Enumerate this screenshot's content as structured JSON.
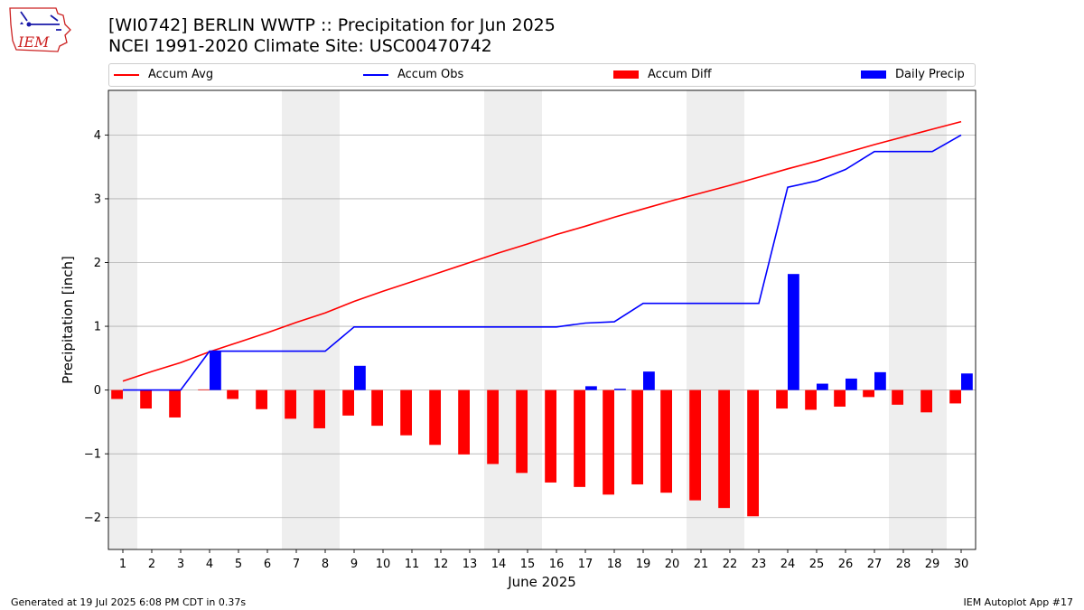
{
  "header": {
    "title_line1": "[WI0742] BERLIN WWTP :: Precipitation for Jun 2025",
    "title_line2": "NCEI 1991-2020 Climate Site: USC00470742"
  },
  "logo": {
    "text": "IEM",
    "icon": "iem-logo-icon"
  },
  "footer": {
    "left": "Generated at 19 Jul 2025 6:08 PM CDT in 0.37s",
    "right": "IEM Autoplot App #17"
  },
  "legend": [
    {
      "label": "Accum Avg",
      "kind": "line",
      "color": "#ff0000"
    },
    {
      "label": "Accum Obs",
      "kind": "line",
      "color": "#0000ff"
    },
    {
      "label": "Accum Diff",
      "kind": "bar",
      "color": "#ff0000"
    },
    {
      "label": "Daily Precip",
      "kind": "bar",
      "color": "#0000ff"
    }
  ],
  "chart_data": {
    "type": "bar",
    "xlabel": "June 2025",
    "ylabel": "Precipitation [inch]",
    "ylim": [
      -2.5,
      4.7
    ],
    "yticks": [
      -2,
      -1,
      0,
      1,
      2,
      3,
      4
    ],
    "ytick_labels": [
      "−2",
      "−1",
      "0",
      "1",
      "2",
      "3",
      "4"
    ],
    "grid": "horizontal",
    "legend_position": "top",
    "weekend_shading_color": "#eeeeee",
    "weekend_shading_days": [
      [
        1,
        1
      ],
      [
        7,
        8
      ],
      [
        14,
        15
      ],
      [
        21,
        22
      ],
      [
        28,
        29
      ]
    ],
    "categories": [
      "1",
      "2",
      "3",
      "4",
      "5",
      "6",
      "7",
      "8",
      "9",
      "10",
      "11",
      "12",
      "13",
      "14",
      "15",
      "16",
      "17",
      "18",
      "19",
      "20",
      "21",
      "22",
      "23",
      "24",
      "25",
      "26",
      "27",
      "28",
      "29",
      "30"
    ],
    "series": [
      {
        "name": "Accum Avg",
        "kind": "line",
        "color": "#ff0000",
        "values": [
          0.14,
          0.29,
          0.43,
          0.6,
          0.75,
          0.9,
          1.06,
          1.21,
          1.39,
          1.55,
          1.7,
          1.85,
          2.0,
          2.15,
          2.29,
          2.44,
          2.57,
          2.71,
          2.84,
          2.97,
          3.09,
          3.21,
          3.34,
          3.47,
          3.59,
          3.72,
          3.85,
          3.97,
          4.09,
          4.21
        ]
      },
      {
        "name": "Accum Obs",
        "kind": "line",
        "color": "#0000ff",
        "values": [
          0.0,
          0.0,
          0.0,
          0.61,
          0.61,
          0.61,
          0.61,
          0.61,
          0.99,
          0.99,
          0.99,
          0.99,
          0.99,
          0.99,
          0.99,
          0.99,
          1.05,
          1.07,
          1.36,
          1.36,
          1.36,
          1.36,
          1.36,
          3.18,
          3.28,
          3.46,
          3.74,
          3.74,
          3.74,
          4.0
        ]
      },
      {
        "name": "Accum Diff",
        "kind": "bar",
        "color": "#ff0000",
        "values": [
          -0.14,
          -0.29,
          -0.43,
          0.01,
          -0.14,
          -0.3,
          -0.45,
          -0.6,
          -0.4,
          -0.56,
          -0.71,
          -0.86,
          -1.01,
          -1.16,
          -1.3,
          -1.45,
          -1.52,
          -1.64,
          -1.48,
          -1.61,
          -1.73,
          -1.85,
          -1.98,
          -0.29,
          -0.31,
          -0.26,
          -0.11,
          -0.23,
          -0.35,
          -0.21
        ]
      },
      {
        "name": "Daily Precip",
        "kind": "bar",
        "color": "#0000ff",
        "values": [
          0,
          0,
          0,
          0.61,
          0,
          0,
          0,
          0,
          0.38,
          0,
          0,
          0,
          0,
          0,
          0,
          0,
          0.06,
          0.02,
          0.29,
          0,
          0,
          0,
          0,
          1.82,
          0.1,
          0.18,
          0.28,
          0,
          0,
          0.26
        ]
      }
    ]
  }
}
